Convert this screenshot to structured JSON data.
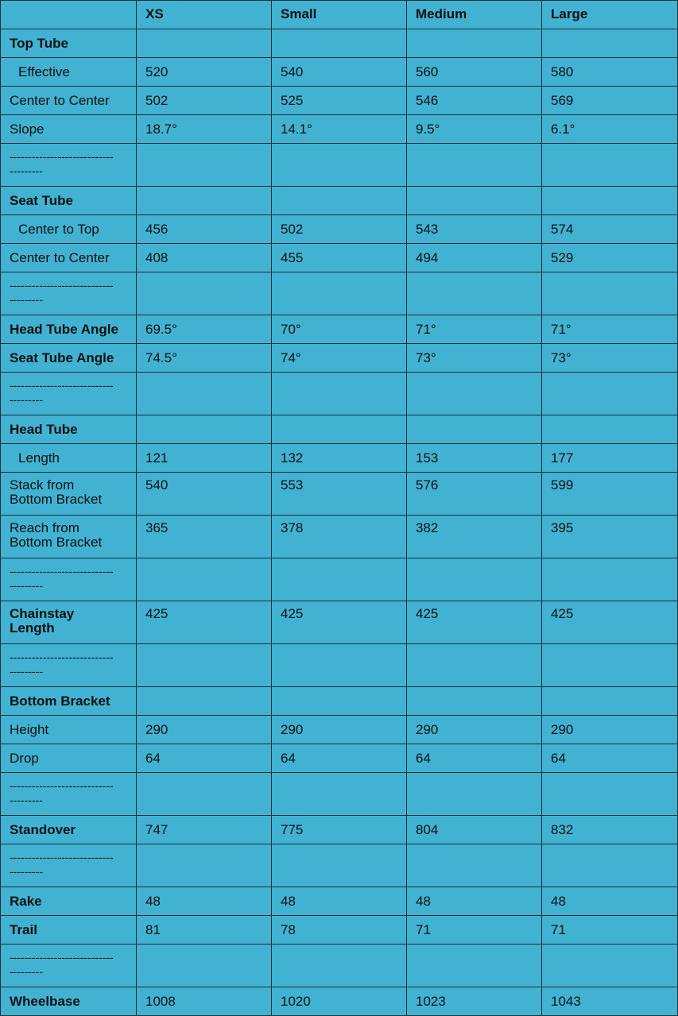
{
  "table": {
    "header": [
      "XS",
      "Small",
      "Medium",
      "Large"
    ],
    "rows": [
      {
        "label": "Top Tube"
      },
      {
        "label": "Effective",
        "values": [
          520,
          540,
          560,
          580
        ]
      },
      {
        "label": "Center to Center",
        "values": [
          502,
          525,
          546,
          569
        ]
      },
      {
        "label": "Slope",
        "values": [
          "18.7°",
          "14.1°",
          "9.5°",
          "6.1°"
        ]
      },
      {
        "label": "-------------------------------------"
      },
      {
        "label": "Seat Tube"
      },
      {
        "label": "Center to Top",
        "values": [
          456,
          502,
          543,
          574
        ]
      },
      {
        "label": "Center to Center",
        "values": [
          408,
          455,
          494,
          529
        ]
      },
      {
        "label": "-------------------------------------"
      },
      {
        "label": "Head Tube Angle",
        "values": [
          "69.5°",
          "70°",
          "71°",
          "71°"
        ]
      },
      {
        "label": "Seat Tube Angle",
        "values": [
          "74.5°",
          "74°",
          "73°",
          "73°"
        ]
      },
      {
        "label": "-------------------------------------"
      },
      {
        "label": "Head Tube"
      },
      {
        "label": "Length",
        "values": [
          121,
          132,
          153,
          177
        ]
      },
      {
        "label": "Stack from Bottom Bracket",
        "values": [
          540,
          553,
          576,
          599
        ]
      },
      {
        "label": "Reach from Bottom Bracket",
        "values": [
          365,
          378,
          382,
          395
        ]
      },
      {
        "label": "-------------------------------------"
      },
      {
        "label": "Chainstay Length",
        "values": [
          425,
          425,
          425,
          425
        ]
      },
      {
        "label": "-------------------------------------"
      },
      {
        "label": "Bottom Bracket"
      },
      {
        "label": "Height",
        "values": [
          290,
          290,
          290,
          290
        ]
      },
      {
        "label": "Drop",
        "values": [
          64,
          64,
          64,
          64
        ]
      },
      {
        "label": "-------------------------------------"
      },
      {
        "label": "Standover",
        "values": [
          747,
          775,
          804,
          832
        ]
      },
      {
        "label": "-------------------------------------"
      },
      {
        "label": "Rake",
        "values": [
          48,
          48,
          48,
          48
        ]
      },
      {
        "label": "Trail",
        "values": [
          81,
          78,
          71,
          71
        ]
      },
      {
        "label": "-------------------------------------"
      },
      {
        "label": "Wheelbase",
        "values": [
          1008,
          1020,
          1023,
          1043
        ]
      }
    ]
  }
}
